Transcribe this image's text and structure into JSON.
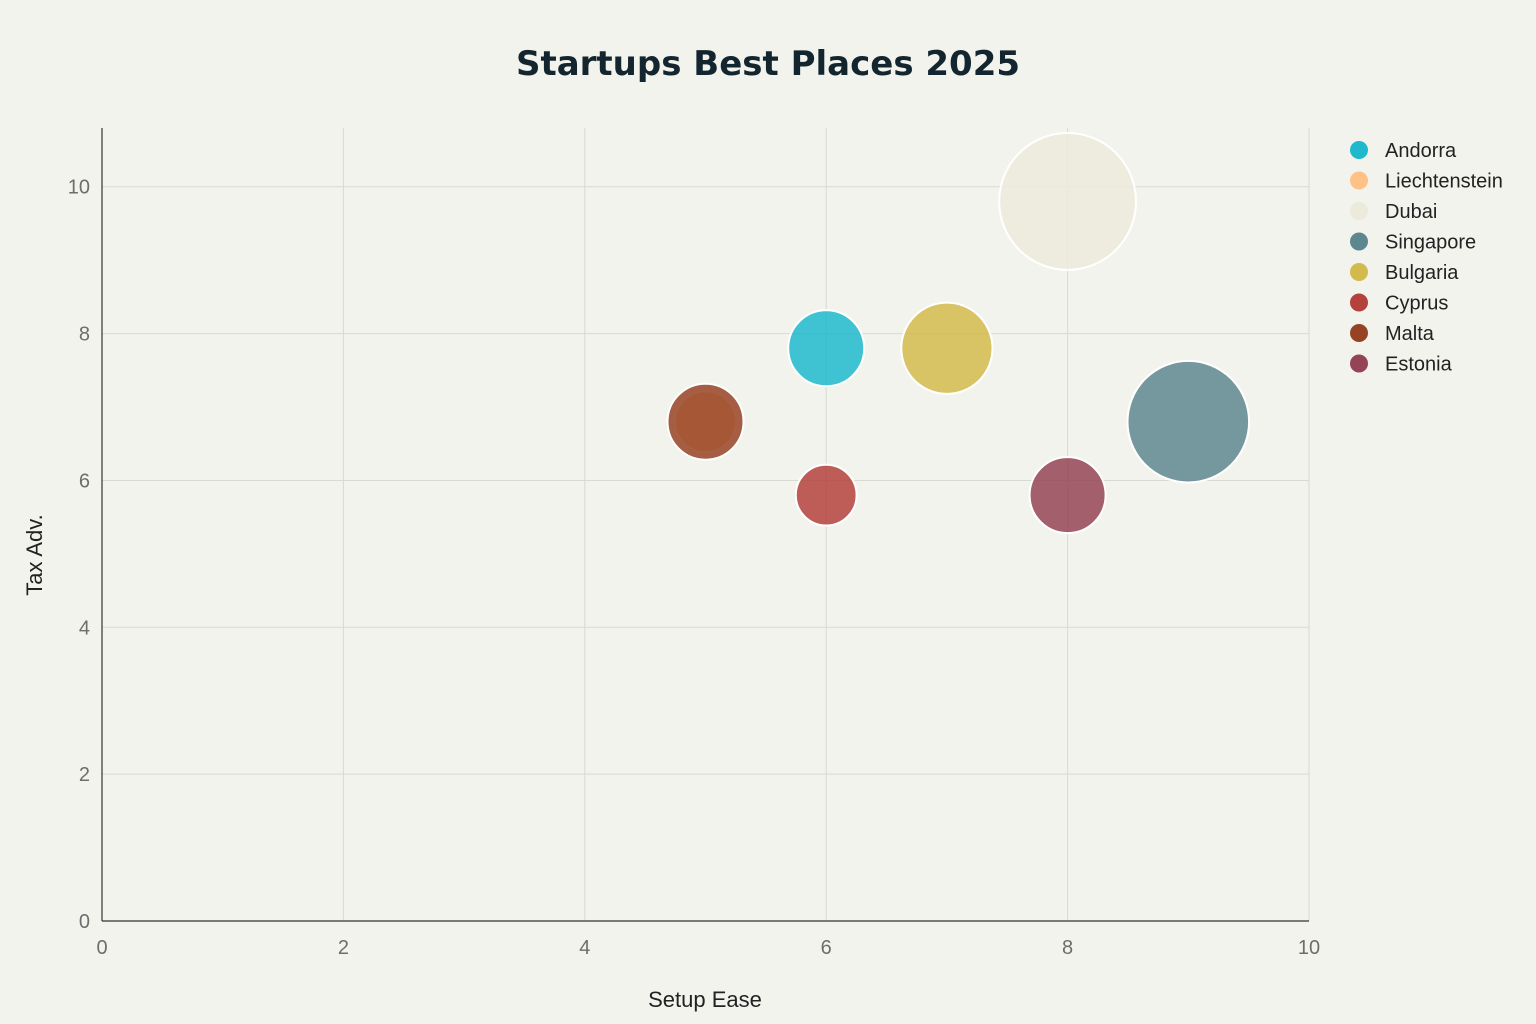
{
  "chart_data": {
    "type": "scatter",
    "title": "Startups Best Places 2025",
    "xlabel": "Setup Ease",
    "ylabel": "Tax Adv.",
    "xlim": [
      0,
      10
    ],
    "ylim": [
      0,
      10.8
    ],
    "xticks": [
      0,
      2,
      4,
      6,
      8,
      10
    ],
    "yticks": [
      0,
      2,
      4,
      6,
      8,
      10
    ],
    "grid": true,
    "legend_position": "right",
    "series": [
      {
        "name": "Andorra",
        "x": 6,
        "y": 7.8,
        "size": 5,
        "color": "#1fb8cd"
      },
      {
        "name": "Liechtenstein",
        "x": 5,
        "y": 6.8,
        "size": 4,
        "color": "#ffc185"
      },
      {
        "name": "Dubai",
        "x": 8,
        "y": 9.8,
        "size": 9,
        "color": "#eceadb"
      },
      {
        "name": "Singapore",
        "x": 9,
        "y": 6.8,
        "size": 8,
        "color": "#5d878f"
      },
      {
        "name": "Bulgaria",
        "x": 7,
        "y": 7.8,
        "size": 6,
        "color": "#d2ba4c"
      },
      {
        "name": "Cyprus",
        "x": 6,
        "y": 5.8,
        "size": 4,
        "color": "#b4413c"
      },
      {
        "name": "Malta",
        "x": 5,
        "y": 6.8,
        "size": 5,
        "color": "#964325"
      },
      {
        "name": "Estonia",
        "x": 8,
        "y": 5.8,
        "size": 5,
        "color": "#944454"
      }
    ]
  }
}
